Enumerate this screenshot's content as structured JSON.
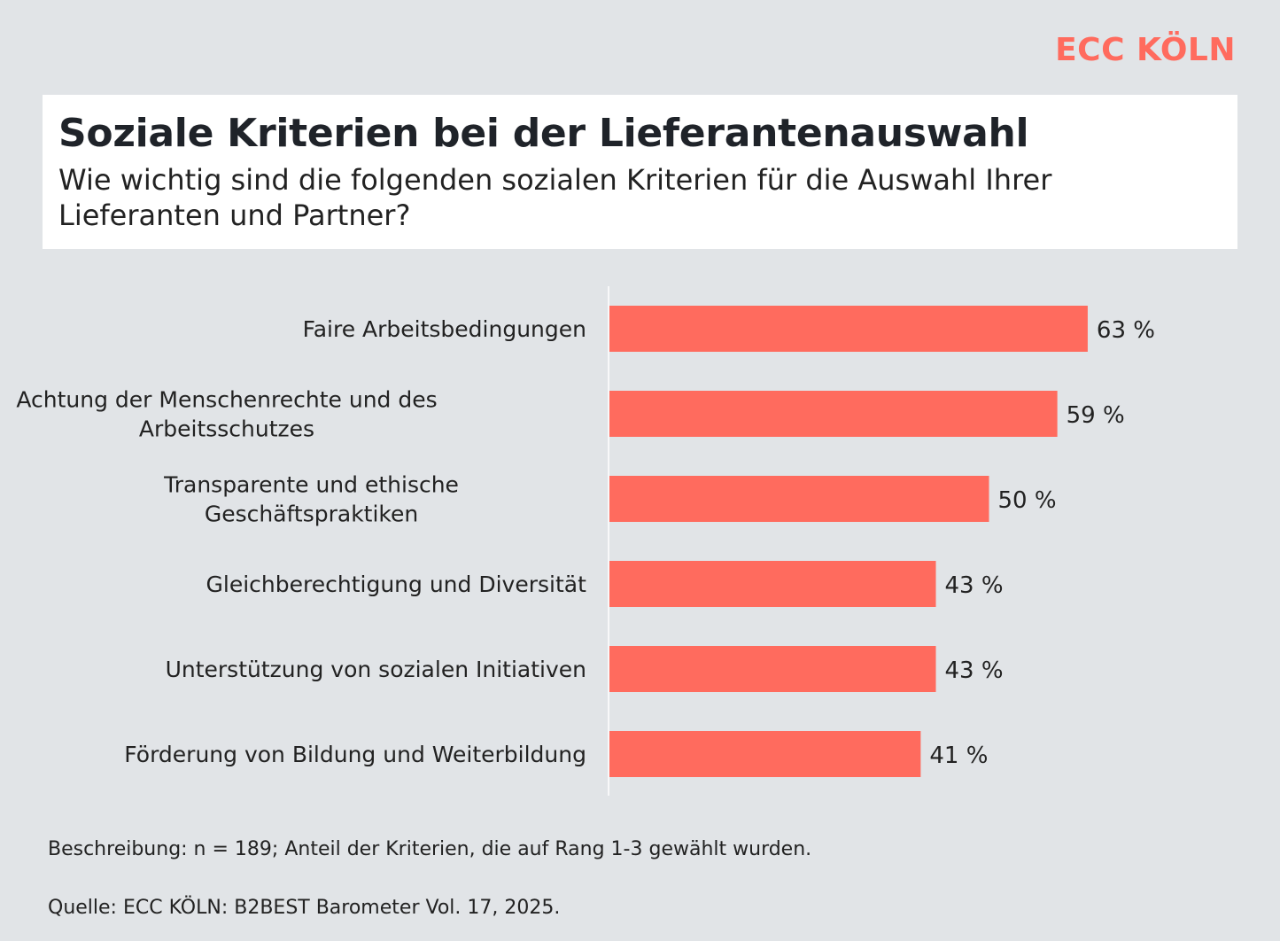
{
  "brand": {
    "name": "ECC KÖLN"
  },
  "header": {
    "title": "Soziale Kriterien bei der Lieferantenauswahl",
    "subtitle": "Wie wichtig sind die folgenden sozialen Kriterien für die Auswahl Ihrer Lieferanten und Partner?"
  },
  "colors": {
    "bar": "#ff6b5e",
    "background": "#e1e4e7",
    "brand": "#ff6b5e"
  },
  "chart_data": {
    "type": "bar",
    "orientation": "horizontal",
    "title": "Soziale Kriterien bei der Lieferantenauswahl",
    "categories": [
      [
        "Faire Arbeitsbedingungen"
      ],
      [
        "Achtung der Menschenrechte und des",
        "Arbeitsschutzes"
      ],
      [
        "Transparente und ethische",
        "Geschäftspraktiken"
      ],
      [
        "Gleichberechtigung und Diversität"
      ],
      [
        "Unterstützung von sozialen Initiativen"
      ],
      [
        "Förderung von Bildung und Weiterbildung"
      ]
    ],
    "values": [
      63,
      59,
      50,
      43,
      43,
      41
    ],
    "value_labels": [
      "63 %",
      "59 %",
      "50 %",
      "43 %",
      "43 %",
      "41 %"
    ],
    "unit": "%",
    "xlim": [
      0,
      100
    ],
    "grid": false,
    "legend": "none"
  },
  "footer": {
    "description": "Beschreibung: n = 189; Anteil der Kriterien, die auf Rang 1-3 gewählt wurden.",
    "source": "Quelle: ECC KÖLN: B2BEST Barometer Vol. 17, 2025."
  }
}
